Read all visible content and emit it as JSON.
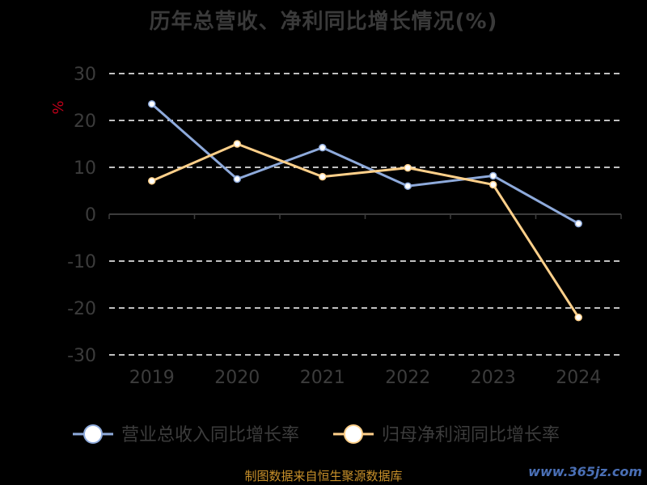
{
  "chart_data": {
    "type": "line",
    "title": "历年总营收、净利同比增长情况(%)",
    "ylabel": "%",
    "categories": [
      "2019",
      "2020",
      "2021",
      "2022",
      "2023",
      "2024"
    ],
    "y_ticks": [
      "30",
      "20",
      "10",
      "0",
      "-10",
      "-20",
      "-30"
    ],
    "ylim": [
      -30,
      30
    ],
    "grid": true,
    "legend_position": "bottom",
    "series": [
      {
        "name": "营业总收入同比增长率",
        "color": "#8eaadb",
        "values": [
          23.5,
          7.5,
          14.2,
          6.0,
          8.2,
          -2.0
        ]
      },
      {
        "name": "归母净利润同比增长率",
        "color": "#ffd08a",
        "values": [
          7.1,
          15.0,
          8.0,
          9.9,
          6.3,
          -22.0
        ]
      }
    ]
  },
  "source_note": "制图数据来自恒生聚源数据库",
  "watermark": "www.365jz.com"
}
